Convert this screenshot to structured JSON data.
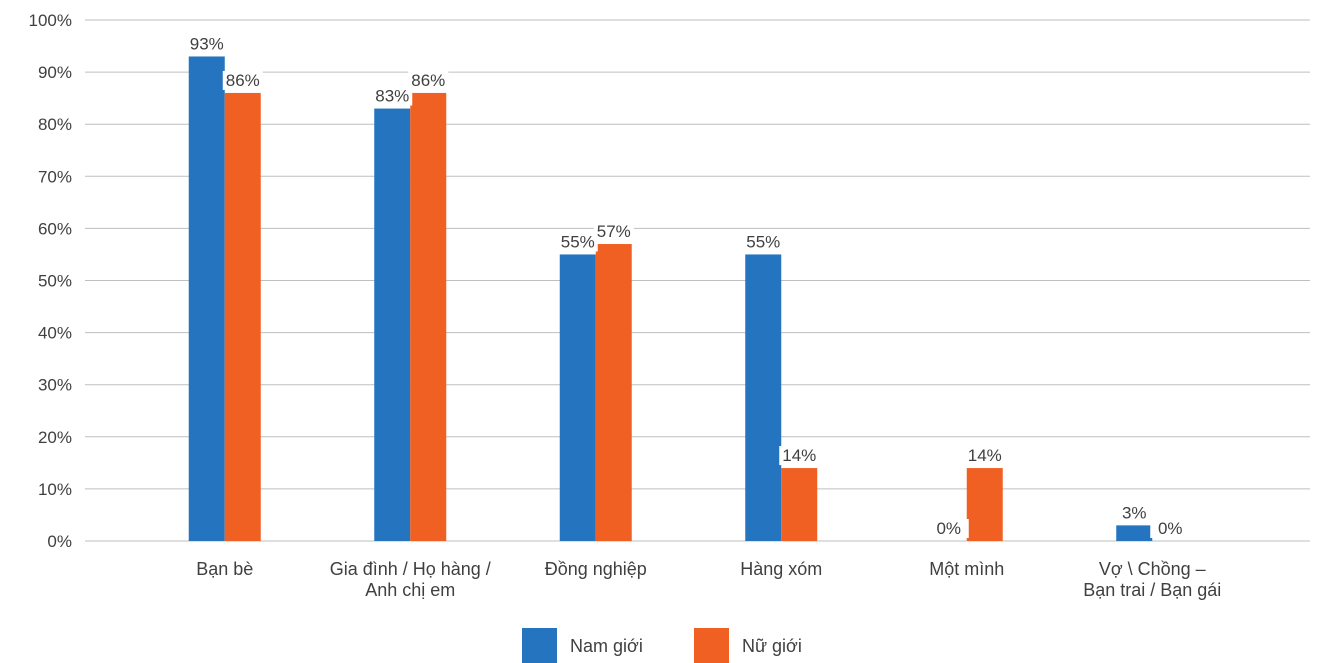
{
  "chart_data": {
    "type": "bar",
    "categories": [
      [
        "Bạn bè"
      ],
      [
        "Gia đình / Họ hàng /",
        "Anh chị em"
      ],
      [
        "Đồng nghiệp"
      ],
      [
        "Hàng xóm"
      ],
      [
        "Một mình"
      ],
      [
        "Vợ \\ Chồng –",
        "Bạn trai / Bạn gái"
      ]
    ],
    "series": [
      {
        "name": "Nam giới",
        "color": "#2474bf",
        "values": [
          93,
          83,
          55,
          55,
          0,
          3
        ],
        "labels": [
          "93%",
          "83%",
          "55%",
          "55%",
          "0%",
          "3%"
        ]
      },
      {
        "name": "Nữ giới",
        "color": "#f06023",
        "values": [
          86,
          86,
          57,
          14,
          14,
          0
        ],
        "labels": [
          "86%",
          "86%",
          "57%",
          "14%",
          "14%",
          "0%"
        ]
      }
    ],
    "ylim": [
      0,
      100
    ],
    "yticks": [
      0,
      10,
      20,
      30,
      40,
      50,
      60,
      70,
      80,
      90,
      100
    ],
    "ytick_labels": [
      "0%",
      "10%",
      "20%",
      "30%",
      "40%",
      "50%",
      "60%",
      "70%",
      "80%",
      "90%",
      "100%"
    ],
    "grid": true,
    "legend": "bottom-center"
  }
}
